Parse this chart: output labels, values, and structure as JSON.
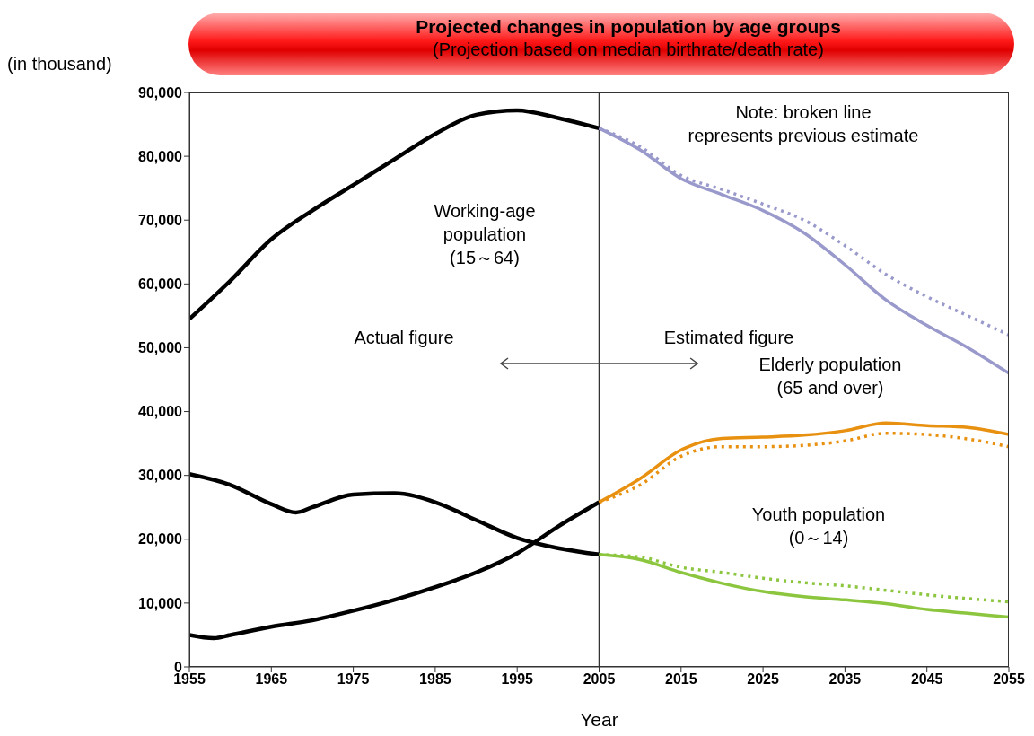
{
  "chart_data": {
    "type": "line",
    "title": "Projected changes in population by age groups",
    "subtitle": "(Projection based on  median birthrate/death rate)",
    "ylabel": "(in thousand)",
    "xlabel": "Year",
    "xlim": [
      1955,
      2055
    ],
    "xticks": [
      1955,
      1965,
      1975,
      1985,
      1995,
      2005,
      2015,
      2025,
      2035,
      2045,
      2055
    ],
    "ylim": [
      0,
      90000
    ],
    "yticks": [
      0,
      {
        "value": 10000,
        "label": "10,000"
      },
      {
        "value": 20000,
        "label": "20,000"
      },
      {
        "value": 30000,
        "label": "30,000"
      },
      {
        "value": 40000,
        "label": "40,000"
      },
      {
        "value": 50000,
        "label": "50,000"
      },
      {
        "value": 60000,
        "label": "60,000"
      },
      {
        "value": 70000,
        "label": "70,000"
      },
      {
        "value": 80000,
        "label": "80,000"
      },
      {
        "value": 90000,
        "label": "90,000"
      }
    ],
    "marker": "none",
    "ref_lines": [
      {
        "axis": "x",
        "value": 2005,
        "color": "#333333"
      }
    ],
    "annotations": [
      "Note: broken line\nrepresents previous estimate",
      "Working-age\npopulation\n(15～64)",
      "Actual figure",
      "Estimated figure",
      "Elderly population\n(65 and over)",
      "Youth population\n(0～14)"
    ],
    "series": [
      {
        "color": "#000000",
        "line_style": "solid",
        "x": [
          1955,
          1960,
          1965,
          1970,
          1975,
          1980,
          1985,
          1990,
          1995,
          2000,
          2005
        ],
        "values": [
          54500,
          60500,
          67000,
          71500,
          75500,
          79500,
          83500,
          86500,
          87200,
          86000,
          84400
        ]
      },
      {
        "color": "#9999cc",
        "line_style": "solid",
        "x": [
          2005,
          2010,
          2015,
          2020,
          2025,
          2030,
          2035,
          2040,
          2045,
          2050,
          2055
        ],
        "values": [
          84400,
          81000,
          76500,
          74000,
          71500,
          68000,
          63000,
          57500,
          53500,
          50000,
          46000
        ]
      },
      {
        "color": "#9999cc",
        "line_style": "dotted",
        "x": [
          2005,
          2010,
          2015,
          2020,
          2025,
          2030,
          2035,
          2040,
          2045,
          2050,
          2055
        ],
        "values": [
          84400,
          81500,
          77000,
          74800,
          72500,
          70000,
          66000,
          61500,
          58000,
          55000,
          52000
        ]
      },
      {
        "color": "#000000",
        "line_style": "solid",
        "x": [
          1955,
          1958,
          1960,
          1965,
          1970,
          1975,
          1980,
          1985,
          1990,
          1995,
          2000,
          2005
        ],
        "values": [
          5000,
          4500,
          5000,
          6300,
          7300,
          8800,
          10500,
          12500,
          14800,
          17800,
          22000,
          25800
        ]
      },
      {
        "color": "#e8900f",
        "line_style": "solid",
        "x": [
          2005,
          2010,
          2015,
          2020,
          2025,
          2030,
          2035,
          2040,
          2045,
          2050,
          2055
        ],
        "values": [
          25800,
          29500,
          34000,
          35800,
          36000,
          36300,
          37000,
          38200,
          37800,
          37500,
          36400
        ]
      },
      {
        "color": "#e8900f",
        "line_style": "dotted",
        "x": [
          2005,
          2010,
          2015,
          2020,
          2025,
          2030,
          2035,
          2040,
          2045,
          2050,
          2055
        ],
        "values": [
          25800,
          28500,
          33000,
          34500,
          34500,
          34700,
          35400,
          36600,
          36400,
          35700,
          34500
        ]
      },
      {
        "color": "#000000",
        "line_style": "solid",
        "x": [
          1955,
          1960,
          1965,
          1968,
          1970,
          1975,
          1980,
          1985,
          1990,
          1995,
          2000,
          2005
        ],
        "values": [
          30200,
          28500,
          25500,
          24200,
          25000,
          27000,
          27200,
          25800,
          23000,
          20200,
          18600,
          17600
        ]
      },
      {
        "color": "#8cc63f",
        "line_style": "solid",
        "x": [
          2005,
          2010,
          2015,
          2020,
          2025,
          2030,
          2035,
          2040,
          2045,
          2050,
          2055
        ],
        "values": [
          17600,
          16800,
          14800,
          13100,
          11800,
          11000,
          10500,
          9900,
          9000,
          8400,
          7800
        ]
      },
      {
        "color": "#8cc63f",
        "line_style": "dotted",
        "x": [
          2005,
          2010,
          2015,
          2020,
          2025,
          2030,
          2035,
          2040,
          2045,
          2050,
          2055
        ],
        "values": [
          17600,
          17200,
          15600,
          14800,
          13900,
          13200,
          12700,
          12000,
          11300,
          10700,
          10200
        ]
      }
    ]
  }
}
